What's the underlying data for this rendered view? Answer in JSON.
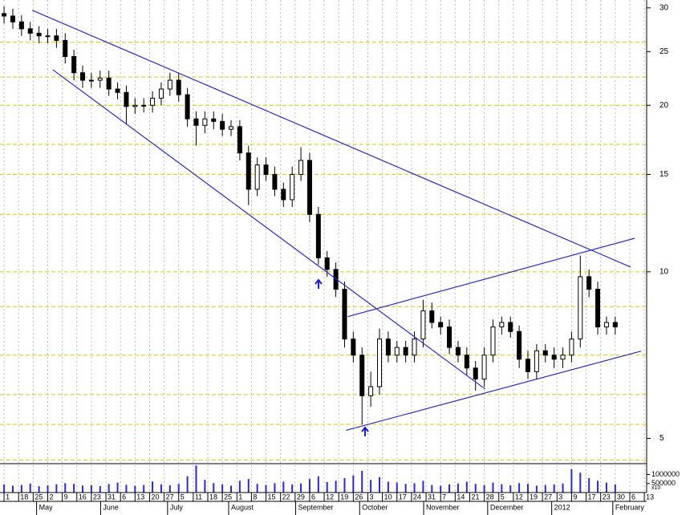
{
  "chart_data": {
    "type": "candlestick",
    "log_scale": true,
    "grid": true,
    "x": [
      0,
      3,
      6,
      9,
      12,
      15,
      18,
      21,
      24,
      27,
      30,
      33,
      36,
      39,
      42,
      45,
      48,
      51,
      54,
      57,
      60,
      63,
      66,
      69,
      72,
      75,
      78,
      81,
      84,
      87,
      90,
      93,
      96,
      99,
      102,
      105,
      108,
      111,
      114,
      117,
      120,
      123,
      126,
      129,
      132,
      135,
      138,
      141,
      144,
      147,
      150,
      153,
      156,
      159,
      162,
      165,
      168,
      171,
      174,
      177,
      180,
      183,
      186,
      189,
      192,
      195,
      198,
      201,
      204,
      207,
      210
    ],
    "open": [
      29.3,
      29.0,
      28.3,
      27.5,
      27.0,
      26.7,
      26.7,
      26.2,
      24.5,
      22.9,
      22.2,
      22.2,
      22.4,
      21.4,
      21.1,
      19.9,
      20.0,
      20.0,
      20.6,
      21.4,
      22.2,
      20.9,
      18.9,
      18.4,
      18.9,
      18.7,
      18.1,
      18.3,
      16.4,
      14.1,
      15.6,
      15.0,
      14.1,
      13.5,
      15.0,
      15.9,
      12.7,
      10.6,
      10.1,
      9.3,
      7.56,
      7.07,
      5.97,
      6.2,
      7.56,
      7.07,
      7.3,
      7.07,
      7.56,
      8.5,
      8.1,
      7.95,
      7.3,
      7.07,
      6.7,
      6.4,
      7.07,
      7.95,
      8.1,
      7.8,
      6.95,
      6.6,
      7.2,
      7.07,
      6.95,
      7.07,
      7.56,
      9.8,
      9.3,
      7.95,
      8.1
    ],
    "high": [
      30.2,
      29.9,
      29.1,
      28.3,
      27.8,
      27.5,
      27.5,
      27.0,
      25.2,
      23.6,
      22.9,
      23.1,
      23.1,
      22.0,
      21.7,
      20.6,
      20.6,
      21.2,
      22.0,
      22.9,
      22.9,
      21.5,
      19.5,
      19.5,
      19.5,
      19.3,
      18.8,
      18.8,
      16.9,
      16.1,
      16.1,
      15.5,
      14.5,
      15.5,
      16.8,
      16.4,
      13.1,
      10.9,
      10.4,
      9.6,
      7.8,
      7.3,
      6.6,
      7.9,
      7.8,
      7.5,
      7.5,
      7.8,
      8.9,
      8.8,
      8.3,
      8.2,
      7.5,
      7.3,
      6.9,
      7.3,
      8.2,
      8.3,
      8.3,
      8.0,
      7.2,
      7.4,
      7.4,
      7.3,
      7.3,
      7.8,
      10.7,
      10.1,
      9.6,
      8.3,
      8.3
    ],
    "low": [
      28.1,
      27.5,
      26.7,
      26.2,
      25.9,
      25.9,
      25.4,
      23.8,
      22.2,
      21.5,
      21.5,
      21.5,
      20.8,
      20.5,
      18.5,
      19.3,
      19.4,
      19.4,
      20.0,
      20.8,
      20.3,
      18.3,
      16.9,
      17.8,
      18.1,
      17.6,
      17.6,
      15.9,
      13.2,
      13.7,
      14.6,
      13.7,
      13.1,
      13.1,
      14.6,
      12.3,
      10.3,
      9.8,
      9.0,
      7.3,
      6.86,
      5.3,
      5.7,
      6.0,
      6.86,
      6.86,
      6.86,
      6.86,
      7.3,
      7.9,
      7.7,
      7.1,
      6.86,
      6.5,
      6.1,
      6.2,
      6.86,
      7.7,
      7.6,
      6.7,
      6.4,
      6.4,
      6.86,
      6.7,
      6.7,
      6.86,
      7.3,
      9.0,
      7.7,
      7.7,
      7.7
    ],
    "close": [
      29.0,
      28.3,
      27.5,
      27.0,
      26.7,
      26.7,
      26.2,
      24.5,
      22.9,
      22.2,
      22.2,
      22.4,
      21.4,
      21.1,
      19.9,
      20.0,
      20.0,
      20.6,
      21.4,
      22.2,
      20.9,
      18.9,
      18.4,
      18.9,
      18.7,
      18.1,
      18.3,
      16.4,
      14.1,
      15.6,
      15.0,
      14.1,
      13.5,
      15.0,
      15.9,
      12.7,
      10.6,
      10.1,
      9.3,
      7.56,
      7.07,
      5.97,
      6.2,
      7.56,
      7.07,
      7.3,
      7.07,
      7.56,
      8.5,
      8.1,
      7.95,
      7.3,
      7.07,
      6.7,
      6.4,
      7.07,
      7.95,
      8.1,
      7.8,
      6.95,
      6.6,
      7.2,
      7.07,
      6.95,
      7.07,
      7.56,
      9.8,
      9.3,
      7.95,
      8.1,
      7.95
    ],
    "volume": [
      450000,
      380000,
      420000,
      500000,
      350000,
      400000,
      460000,
      520000,
      480000,
      390000,
      410000,
      360000,
      470000,
      550000,
      430000,
      380000,
      420000,
      610000,
      450000,
      400000,
      480000,
      900000,
      1500000,
      700000,
      520000,
      460000,
      380000,
      650000,
      750000,
      480000,
      420000,
      520000,
      600000,
      450000,
      500000,
      750000,
      900000,
      580000,
      650000,
      800000,
      950000,
      1200000,
      700000,
      850000,
      600000,
      550000,
      480000,
      520000,
      650000,
      420000,
      380000,
      450000,
      500000,
      600000,
      480000,
      420000,
      550000,
      460000,
      400000,
      520000,
      480000,
      380000,
      420000,
      450000,
      500000,
      1300000,
      1100000,
      800000,
      650000,
      550000,
      450000
    ],
    "xlim": [
      -1.4,
      220.8
    ],
    "ylim": [
      4.5,
      31
    ],
    "yticks": [
      5,
      10,
      15,
      20,
      25,
      30
    ],
    "grid_levels": [
      26,
      22.5,
      20,
      17,
      15,
      12.7,
      10,
      8.65,
      7.07,
      6,
      5.3,
      4.57
    ],
    "volume_lim": [
      0,
      1600000
    ],
    "volume_ticks": [
      1000000,
      500000
    ],
    "volume_note": "x10",
    "xticks": [
      {
        "value": 0,
        "label": "1"
      },
      {
        "value": 5,
        "label": "18"
      },
      {
        "value": 10,
        "label": "25"
      },
      {
        "value": 15,
        "label": "2"
      },
      {
        "value": 20,
        "label": "9"
      },
      {
        "value": 25,
        "label": "16"
      },
      {
        "value": 30,
        "label": "23"
      },
      {
        "value": 35,
        "label": "31"
      },
      {
        "value": 40,
        "label": "6"
      },
      {
        "value": 45,
        "label": "13"
      },
      {
        "value": 50,
        "label": "20"
      },
      {
        "value": 55,
        "label": "27"
      },
      {
        "value": 60,
        "label": "5"
      },
      {
        "value": 65,
        "label": "11"
      },
      {
        "value": 70,
        "label": "18"
      },
      {
        "value": 75,
        "label": "25"
      },
      {
        "value": 80,
        "label": "1"
      },
      {
        "value": 85,
        "label": "8"
      },
      {
        "value": 90,
        "label": "15"
      },
      {
        "value": 95,
        "label": "22"
      },
      {
        "value": 100,
        "label": "29"
      },
      {
        "value": 105,
        "label": "6"
      },
      {
        "value": 110,
        "label": "12"
      },
      {
        "value": 115,
        "label": "19"
      },
      {
        "value": 120,
        "label": "26"
      },
      {
        "value": 125,
        "label": "3"
      },
      {
        "value": 130,
        "label": "10"
      },
      {
        "value": 135,
        "label": "17"
      },
      {
        "value": 140,
        "label": "24"
      },
      {
        "value": 145,
        "label": "31"
      },
      {
        "value": 150,
        "label": "7"
      },
      {
        "value": 155,
        "label": "14"
      },
      {
        "value": 160,
        "label": "21"
      },
      {
        "value": 165,
        "label": "28"
      },
      {
        "value": 170,
        "label": "5"
      },
      {
        "value": 175,
        "label": "12"
      },
      {
        "value": 180,
        "label": "19"
      },
      {
        "value": 185,
        "label": "27"
      },
      {
        "value": 190,
        "label": "3"
      },
      {
        "value": 195,
        "label": "9"
      },
      {
        "value": 200,
        "label": "17"
      },
      {
        "value": 205,
        "label": "23"
      },
      {
        "value": 210,
        "label": "30"
      },
      {
        "value": 215,
        "label": "6"
      },
      {
        "value": 220,
        "label": "13"
      }
    ],
    "months": [
      {
        "value": 12,
        "label": "May"
      },
      {
        "value": 34,
        "label": "June"
      },
      {
        "value": 57,
        "label": "July"
      },
      {
        "value": 78,
        "label": "August"
      },
      {
        "value": 101,
        "label": "September"
      },
      {
        "value": 123,
        "label": "October"
      },
      {
        "value": 145,
        "label": "November"
      },
      {
        "value": 167,
        "label": "December"
      },
      {
        "value": 189,
        "label": "2012"
      },
      {
        "value": 210,
        "label": "February"
      }
    ],
    "trendlines": [
      {
        "x": [
          9.7,
          215.3
        ],
        "y": [
          29.7,
          10.2
        ]
      },
      {
        "x": [
          16.7,
          165.3
        ],
        "y": [
          23.2,
          6.14
        ]
      },
      {
        "x": [
          118.1,
          216.7
        ],
        "y": [
          8.3,
          11.5
        ]
      },
      {
        "x": [
          117.5,
          218.9
        ],
        "y": [
          5.17,
          7.19
        ]
      }
    ],
    "colors": {
      "trend": "#2a2ad0",
      "grid_h": "#e8c200",
      "grid_v": "#bbbbbb",
      "candle": "#000000",
      "volume": "#2a2ad0"
    }
  }
}
